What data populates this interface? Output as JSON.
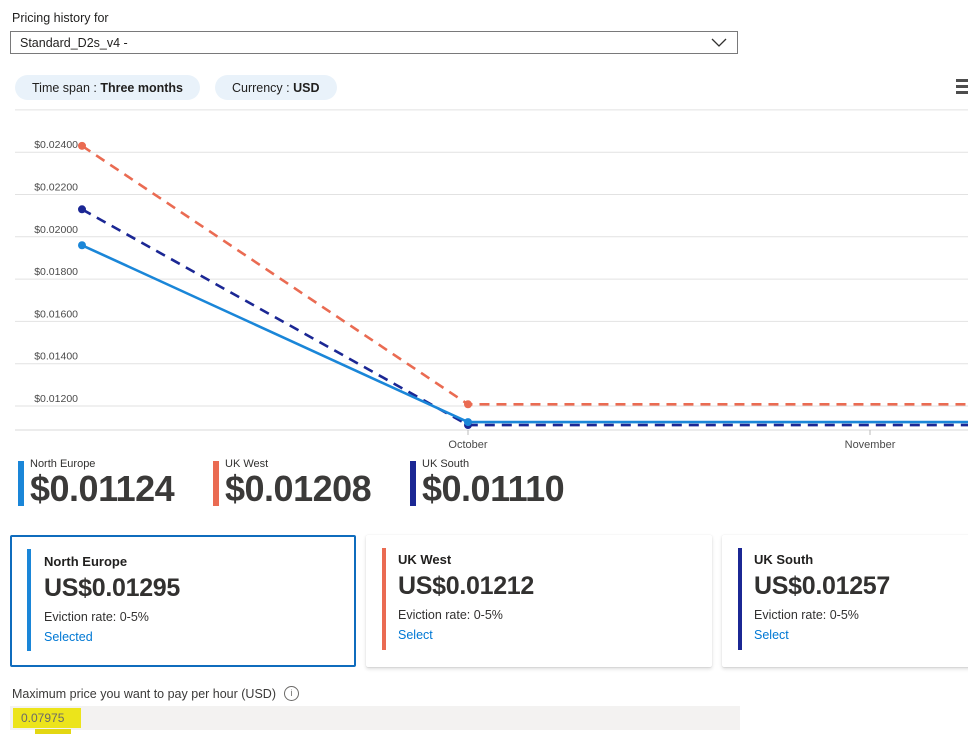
{
  "header": {
    "label": "Pricing history for",
    "dropdown_value": "Standard_D2s_v4 -"
  },
  "filters": {
    "time_span_label": "Time span : ",
    "time_span_value": "Three months",
    "currency_label": "Currency : ",
    "currency_value": "USD"
  },
  "icons": {
    "dropdown_chevron": "chevron-down",
    "chart_menu": "hamburger-menu",
    "info": "info-circle"
  },
  "chart_data": {
    "type": "line",
    "currency": "USD",
    "time_span": "Three months",
    "grid": true,
    "legend_position": "below-chart",
    "x_tick_labels": [
      "October",
      "November"
    ],
    "y_ticks": [
      0.024,
      0.022,
      0.02,
      0.018,
      0.016,
      0.014,
      0.012
    ],
    "y_tick_labels": [
      "$0.02400",
      "$0.02200",
      "$0.02000",
      "$0.01800",
      "$0.01600",
      "$0.01400",
      "$0.01200"
    ],
    "y_gridlines": [
      0.026,
      0.024,
      0.022,
      0.02,
      0.018,
      0.016,
      0.014,
      0.012
    ],
    "ylim": [
      0.0108,
      0.0265
    ],
    "series": [
      {
        "name": "UK West",
        "color": "#ea6b52",
        "style": "dashed",
        "points": [
          {
            "x": "series start (mid-September)",
            "y": 0.0243
          },
          {
            "x": "October",
            "y": 0.01208
          },
          {
            "x": "chart end",
            "y": 0.01208
          }
        ]
      },
      {
        "name": "UK South",
        "color": "#1b2794",
        "style": "dashed",
        "points": [
          {
            "x": "series start (mid-September)",
            "y": 0.0213
          },
          {
            "x": "October",
            "y": 0.0111
          },
          {
            "x": "chart end",
            "y": 0.0111
          }
        ]
      },
      {
        "name": "North Europe",
        "color": "#1a86d8",
        "style": "solid",
        "points": [
          {
            "x": "series start (mid-September)",
            "y": 0.0196
          },
          {
            "x": "October",
            "y": 0.01124
          },
          {
            "x": "chart end",
            "y": 0.01124
          }
        ]
      }
    ]
  },
  "legend": {
    "items": [
      {
        "name": "North Europe",
        "price": "$0.01124",
        "color": "#1a86d8"
      },
      {
        "name": "UK West",
        "price": "$0.01208",
        "color": "#ea6b52"
      },
      {
        "name": "UK South",
        "price": "$0.01110",
        "color": "#1b2794"
      }
    ]
  },
  "cards": [
    {
      "region": "North Europe",
      "price": "US$0.01295",
      "eviction": "Eviction rate: 0-5%",
      "action": "Selected",
      "accent": "#1a86d8",
      "selected": true,
      "border_color": "#0f6cbd"
    },
    {
      "region": "UK West",
      "price": "US$0.01212",
      "eviction": "Eviction rate: 0-5%",
      "action": "Select",
      "accent": "#ea6b52",
      "selected": false
    },
    {
      "region": "UK South",
      "price": "US$0.01257",
      "eviction": "Eviction rate: 0-5%",
      "action": "Select",
      "accent": "#1b2794",
      "selected": false
    }
  ],
  "max_price": {
    "label": "Maximum price you want to pay per hour (USD)",
    "value": "0.07975",
    "highlight_color": "#ece41b"
  },
  "colors": {
    "link": "#0078d4",
    "pill_background": "#e9f2fa",
    "input_background": "#f3f2f1",
    "selected_card_border": "#0f6cbd"
  }
}
